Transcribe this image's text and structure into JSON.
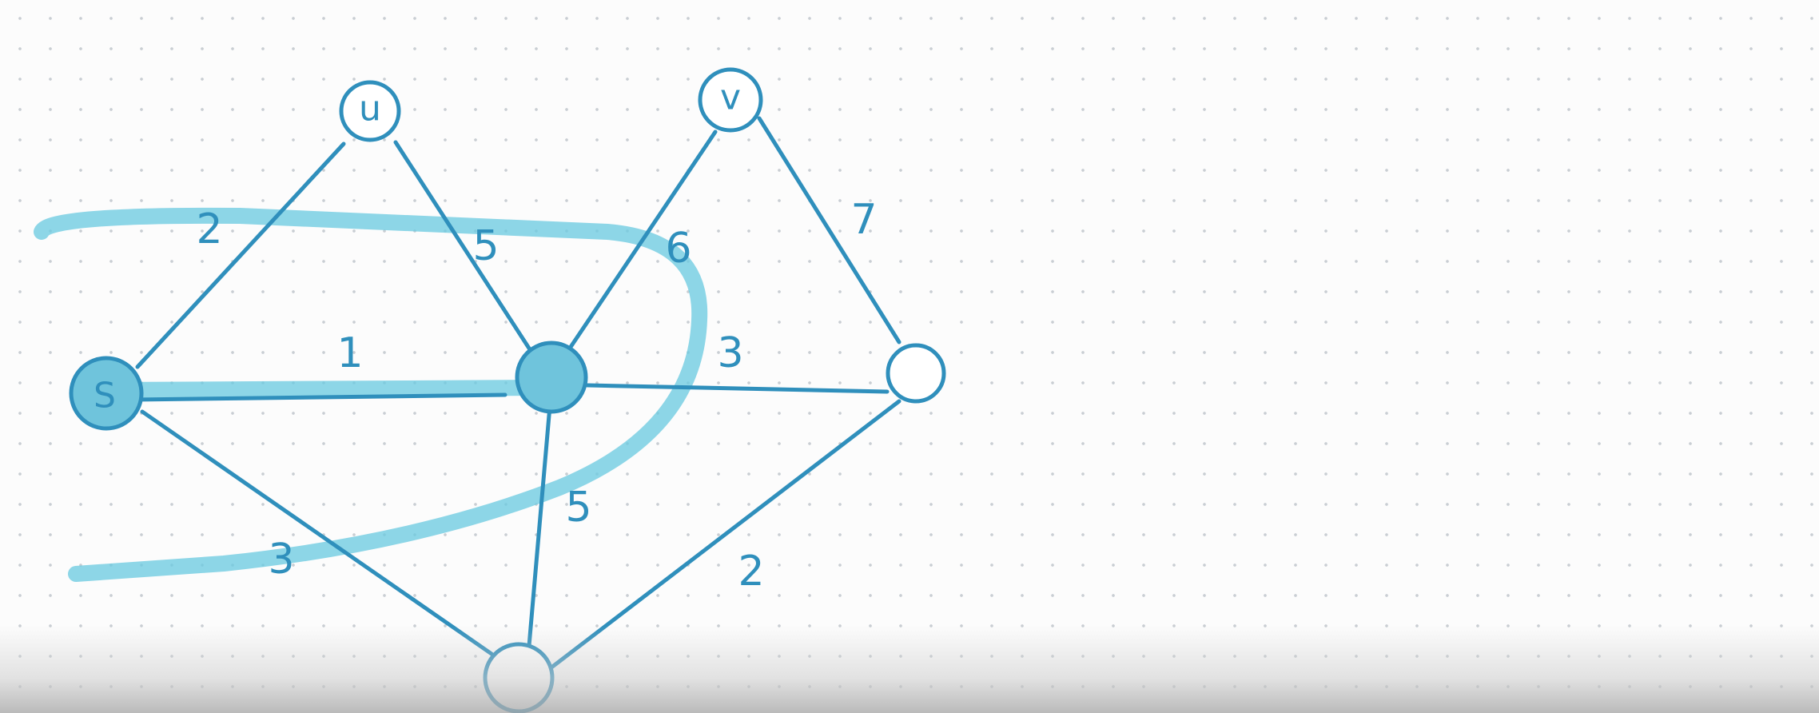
{
  "diagram": {
    "type": "weighted-graph-cut",
    "colors": {
      "ink": "#2f8fbc",
      "highlight": "#6dcbe0",
      "filled_node": "#6fc4dc"
    },
    "nodes": [
      {
        "id": "s",
        "label": "S",
        "filled": true
      },
      {
        "id": "u",
        "label": "u",
        "filled": false
      },
      {
        "id": "v",
        "label": "v",
        "filled": false
      },
      {
        "id": "center",
        "label": "",
        "filled": true
      },
      {
        "id": "right",
        "label": "",
        "filled": false
      },
      {
        "id": "bottom",
        "label": "",
        "filled": false
      }
    ],
    "edges": [
      {
        "from": "s",
        "to": "u",
        "weight": "2"
      },
      {
        "from": "u",
        "to": "center",
        "weight": "5"
      },
      {
        "from": "s",
        "to": "center",
        "weight": "1"
      },
      {
        "from": "center",
        "to": "v",
        "weight": "6"
      },
      {
        "from": "v",
        "to": "right",
        "weight": "7"
      },
      {
        "from": "center",
        "to": "right",
        "weight": "3"
      },
      {
        "from": "s",
        "to": "bottom",
        "weight": "3"
      },
      {
        "from": "center",
        "to": "bottom",
        "weight": "5"
      },
      {
        "from": "bottom",
        "to": "right",
        "weight": "2"
      }
    ]
  }
}
